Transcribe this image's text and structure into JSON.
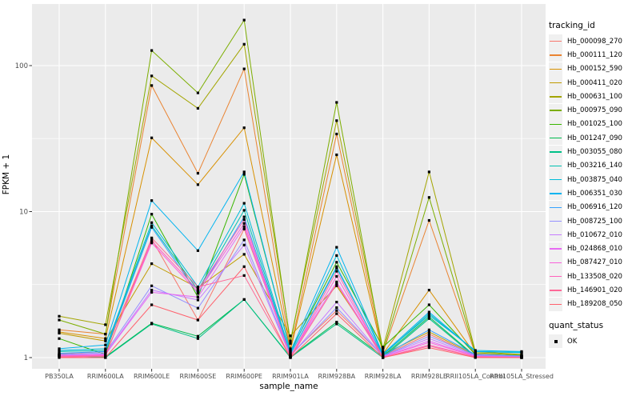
{
  "figure": {
    "background": "#FFFFFF",
    "panel_background": "#EBEBEB",
    "gridline_color": "#FFFFFF",
    "tick_color": "#333333",
    "tick_label_color": "#4D4D4D",
    "axis_title_color": "#000000",
    "legend_key_background": "#F0F0F0",
    "point_color": "#000000"
  },
  "chart_data": {
    "type": "line",
    "title": "",
    "xlabel": "sample_name",
    "ylabel": "FPKM + 1",
    "y_scale": "log10",
    "y_ticks": [
      1,
      10,
      100
    ],
    "y_minor_breaks": [
      3.1623,
      31.623
    ],
    "ylim": [
      0.84,
      262
    ],
    "grid": true,
    "legend_position": "right",
    "legend_title": "tracking_id",
    "legend2_title": "quant_status",
    "legend2_items": [
      {
        "label": "OK",
        "marker": "black-square"
      }
    ],
    "marker": "black-square",
    "categories": [
      "PB350LA",
      "RRIM600LA",
      "RRIM600LE",
      "RRIM600SE",
      "RRIM600PE",
      "RRIM901LA",
      "RRIM928BA",
      "RRIM928LA",
      "RRIM928LE",
      "RRII105LA_Control",
      "RRII105LA_Stressed"
    ],
    "series": [
      {
        "name": "Hb_000098_270",
        "color": "#F8766D",
        "values": [
          1.06,
          1.1,
          6.5,
          1.81,
          7.6,
          1.05,
          2.1,
          1.03,
          1.45,
          1.03,
          1.01
        ]
      },
      {
        "name": "Hb_000111_120",
        "color": "#EA8331",
        "values": [
          1.55,
          1.45,
          73,
          18.3,
          95,
          1.15,
          34,
          1.08,
          8.7,
          1.06,
          1.03
        ]
      },
      {
        "name": "Hb_000152_590",
        "color": "#D89000",
        "values": [
          1.5,
          1.35,
          32,
          15.3,
          37.5,
          1.12,
          24.5,
          1.06,
          2.9,
          1.05,
          1.02
        ]
      },
      {
        "name": "Hb_000411_020",
        "color": "#C09B00",
        "values": [
          1.47,
          1.3,
          4.4,
          3.0,
          5.1,
          1.41,
          3.1,
          1.05,
          1.5,
          1.04,
          1.02
        ]
      },
      {
        "name": "Hb_000631_100",
        "color": "#A3A500",
        "values": [
          1.92,
          1.68,
          85,
          51,
          140,
          1.3,
          42,
          1.15,
          18.7,
          1.1,
          1.05
        ]
      },
      {
        "name": "Hb_000975_090",
        "color": "#7CAE00",
        "values": [
          1.81,
          1.45,
          127,
          65,
          205,
          1.25,
          56,
          1.1,
          12.5,
          1.08,
          1.04
        ]
      },
      {
        "name": "Hb_001025_100",
        "color": "#39B600",
        "values": [
          1.35,
          1.05,
          9.6,
          2.6,
          18.0,
          1.1,
          4.5,
          1.18,
          2.3,
          1.05,
          1.02
        ]
      },
      {
        "name": "Hb_001247_090",
        "color": "#00BB4E",
        "values": [
          1.05,
          1.01,
          1.72,
          1.4,
          2.5,
          1.01,
          1.75,
          1.02,
          1.9,
          1.02,
          1.0
        ]
      },
      {
        "name": "Hb_003055_080",
        "color": "#00C087",
        "values": [
          1.04,
          1.0,
          1.7,
          1.35,
          2.5,
          1.0,
          1.7,
          1.0,
          1.85,
          1.01,
          1.0
        ]
      },
      {
        "name": "Hb_003216_140",
        "color": "#00C0B2",
        "values": [
          1.1,
          1.12,
          8.0,
          2.9,
          10.2,
          1.05,
          4.1,
          1.04,
          2.0,
          1.1,
          1.08
        ]
      },
      {
        "name": "Hb_003875_040",
        "color": "#00BCD8",
        "values": [
          1.12,
          1.15,
          8.4,
          3.05,
          11.4,
          1.07,
          5.0,
          1.05,
          1.95,
          1.12,
          1.1
        ]
      },
      {
        "name": "Hb_006351_030",
        "color": "#00B4F0",
        "values": [
          1.15,
          1.22,
          11.9,
          5.4,
          18.7,
          1.1,
          5.7,
          1.06,
          2.05,
          1.1,
          1.09
        ]
      },
      {
        "name": "Hb_006916_120",
        "color": "#35A2FF",
        "values": [
          1.07,
          1.1,
          7.8,
          2.75,
          9.2,
          1.05,
          4.2,
          1.03,
          1.55,
          1.05,
          1.03
        ]
      },
      {
        "name": "Hb_008725_100",
        "color": "#9590FF",
        "values": [
          1.05,
          1.08,
          3.1,
          2.18,
          6.4,
          1.03,
          2.2,
          1.02,
          1.4,
          1.04,
          1.02
        ]
      },
      {
        "name": "Hb_010672_010",
        "color": "#C77CFF",
        "values": [
          1.04,
          1.06,
          2.9,
          2.48,
          5.9,
          1.02,
          2.4,
          1.02,
          1.35,
          1.03,
          1.01
        ]
      },
      {
        "name": "Hb_024868_010",
        "color": "#E76BF3",
        "values": [
          1.03,
          1.05,
          2.8,
          2.6,
          7.9,
          1.02,
          3.3,
          1.01,
          1.3,
          1.02,
          1.01
        ]
      },
      {
        "name": "Hb_087427_010",
        "color": "#FA62DB",
        "values": [
          1.03,
          1.04,
          6.1,
          2.8,
          8.3,
          1.01,
          3.6,
          1.01,
          1.27,
          1.02,
          1.0
        ]
      },
      {
        "name": "Hb_133508_020",
        "color": "#FF62BC",
        "values": [
          1.02,
          1.03,
          6.3,
          2.9,
          8.8,
          1.01,
          3.9,
          1.0,
          1.22,
          1.01,
          1.0
        ]
      },
      {
        "name": "Hb_146901_020",
        "color": "#FF6A98",
        "values": [
          1.01,
          1.02,
          6.6,
          3.05,
          3.65,
          1.0,
          3.2,
          1.0,
          1.2,
          1.01,
          1.0
        ]
      },
      {
        "name": "Hb_189208_050",
        "color": "#FF616D",
        "values": [
          1.0,
          1.0,
          2.3,
          1.81,
          4.2,
          1.0,
          2.0,
          1.0,
          1.17,
          1.0,
          1.0
        ]
      }
    ]
  }
}
